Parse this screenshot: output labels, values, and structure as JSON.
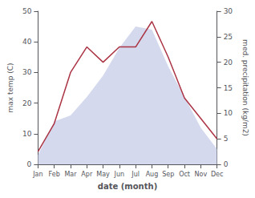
{
  "chart_data": {
    "type": "line",
    "xlabel": "date (month)",
    "ylabel": "max temp (C)",
    "y2label": "med. precipitation (kg/m2)",
    "categories": [
      "Jan",
      "Feb",
      "Mar",
      "Apr",
      "May",
      "Jun",
      "Jul",
      "Aug",
      "Sep",
      "Oct",
      "Nov",
      "Dec"
    ],
    "series": [
      {
        "type": "area",
        "color": "#c5cce8",
        "values": [
          3,
          14,
          16,
          22,
          29,
          38,
          45,
          44,
          32,
          22,
          12,
          5
        ]
      },
      {
        "type": "line",
        "color": "#aa3344",
        "axis": "y2",
        "values": [
          2.5,
          8,
          18,
          23,
          20,
          23,
          23,
          28,
          21,
          13,
          9,
          5
        ]
      }
    ],
    "ylim": [
      0,
      50
    ],
    "yticks": [
      0,
      10,
      20,
      30,
      40,
      50
    ],
    "y2lim": [
      0,
      30
    ],
    "y2ticks": [
      0,
      5,
      10,
      15,
      20,
      25,
      30
    ],
    "grid": false
  }
}
